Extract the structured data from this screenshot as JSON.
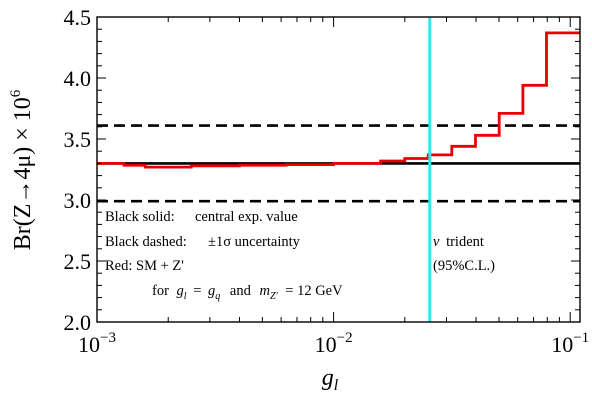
{
  "chart_data": {
    "type": "line",
    "xscale": "log",
    "xlim": [
      0.001,
      0.11
    ],
    "ylim": [
      2.0,
      4.5
    ],
    "x_ticks": [
      {
        "value": 0.001,
        "base": "10",
        "exp": "−3"
      },
      {
        "value": 0.01,
        "base": "10",
        "exp": "−2"
      },
      {
        "value": 0.1,
        "base": "10",
        "exp": "−1"
      }
    ],
    "y_ticks": [
      {
        "value": 2.0,
        "label": "2.0"
      },
      {
        "value": 2.5,
        "label": "2.5"
      },
      {
        "value": 3.0,
        "label": "3.0"
      },
      {
        "value": 3.5,
        "label": "3.5"
      },
      {
        "value": 4.0,
        "label": "4.0"
      },
      {
        "value": 4.5,
        "label": "4.5"
      }
    ],
    "xlabel": "gl",
    "ylabel": "Br(Z→4μ) × 10^6",
    "hlines": [
      {
        "name": "central",
        "y": 3.3,
        "style": "solid",
        "color": "#000000"
      },
      {
        "name": "upper",
        "y": 3.61,
        "style": "dashed",
        "color": "#000000"
      },
      {
        "name": "lower",
        "y": 2.99,
        "style": "dashed",
        "color": "#000000"
      }
    ],
    "vline": {
      "x": 0.0255,
      "color": "#33e6ee"
    },
    "series": [
      {
        "color": "#e80000",
        "step": true,
        "x": [
          0.001,
          0.0013,
          0.0016,
          0.0025,
          0.004,
          0.0063,
          0.01,
          0.0158,
          0.02,
          0.0251,
          0.0316,
          0.0398,
          0.0501,
          0.0631,
          0.0794,
          0.11
        ],
        "y": [
          3.3,
          3.285,
          3.27,
          3.28,
          3.285,
          3.29,
          3.3,
          3.32,
          3.34,
          3.37,
          3.44,
          3.53,
          3.71,
          3.94,
          4.37,
          4.37
        ]
      }
    ],
    "legend": {
      "line1_name": "Black solid:",
      "line1_desc": "central exp. value",
      "line2_name": "Black dashed:",
      "line2_desc": "±1σ uncertainty",
      "line3": "Red: SM + Z'",
      "line4_prefix": "for",
      "line4_g1": "g",
      "line4_g1_sub": "l",
      "line4_eq": "=",
      "line4_g2": "g",
      "line4_g2_sub": "q",
      "line4_and": "and",
      "line4_m": "m",
      "line4_m_sub": "Z'",
      "line4_val": "= 12 GeV"
    },
    "annotation": {
      "line1_nu": "ν",
      "line1_text": "trident",
      "line2": "(95%C.L.)"
    },
    "ylabel_parts": {
      "main": "Br(Z→4μ) × 10",
      "exp": "6"
    },
    "xlabel_parts": {
      "main": "g",
      "sub": "l"
    }
  }
}
